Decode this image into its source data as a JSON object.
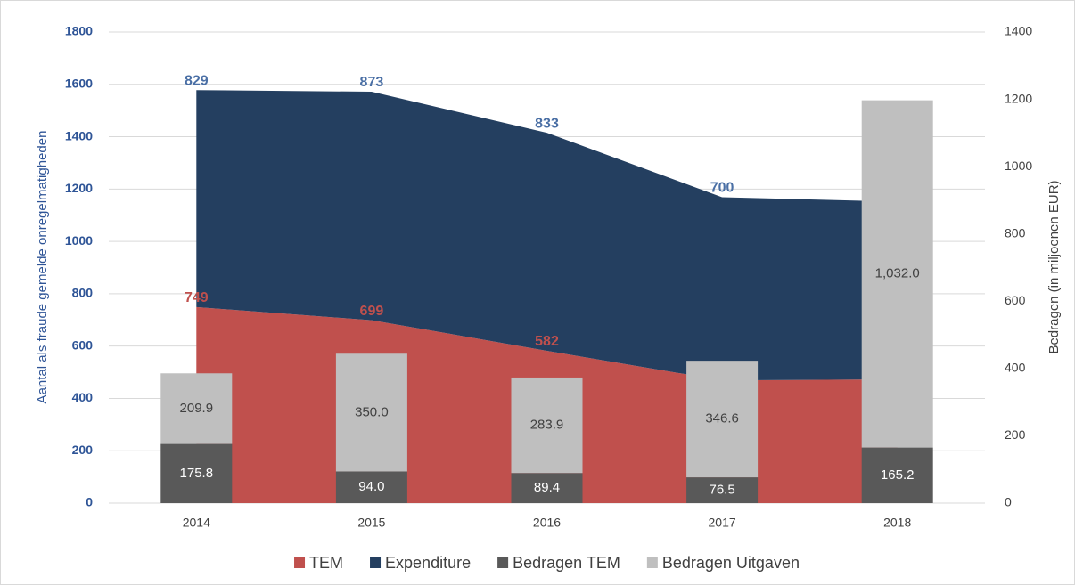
{
  "chart_data": {
    "type": "combo",
    "categories": [
      "2014",
      "2015",
      "2016",
      "2017",
      "2018"
    ],
    "ylabel": "Aantal als fraude gemelde onregelmatigheden",
    "y2label": "Bedragen (in miljoenen EUR)",
    "ylim": [
      0,
      1800
    ],
    "yticks": [
      0,
      200,
      400,
      600,
      800,
      1000,
      1200,
      1400,
      1600,
      1800
    ],
    "y2lim": [
      0,
      1400
    ],
    "y2ticks": [
      0,
      200,
      400,
      600,
      800,
      1000,
      1200,
      1400
    ],
    "grid": true,
    "legend": "bottom",
    "stacked": true,
    "series": [
      {
        "name": "TEM",
        "type": "area",
        "color": "#c0504d",
        "label_color": "#c0504d",
        "values": [
          749,
          699,
          582,
          469,
          473
        ]
      },
      {
        "name": "Expenditure",
        "type": "area",
        "color": "#243f60",
        "label_color": "#4a6fa5",
        "values": [
          829,
          873,
          833,
          700,
          679
        ]
      },
      {
        "name": "Bedragen TEM",
        "type": "bar",
        "axis": "y2",
        "color": "#595959",
        "label_color": "#ffffff",
        "values": [
          175.8,
          94.0,
          89.4,
          76.5,
          165.2
        ],
        "value_labels": [
          "175.8",
          "94.0",
          "89.4",
          "76.5",
          "165.2"
        ]
      },
      {
        "name": "Bedragen Uitgaven",
        "type": "bar",
        "axis": "y2",
        "color": "#bfbfbf",
        "label_color": "#404040",
        "values": [
          209.9,
          350.0,
          283.9,
          346.6,
          1032.0
        ],
        "value_labels": [
          "209.9",
          "350.0",
          "283.9",
          "346.6",
          "1,032.0"
        ]
      }
    ]
  }
}
